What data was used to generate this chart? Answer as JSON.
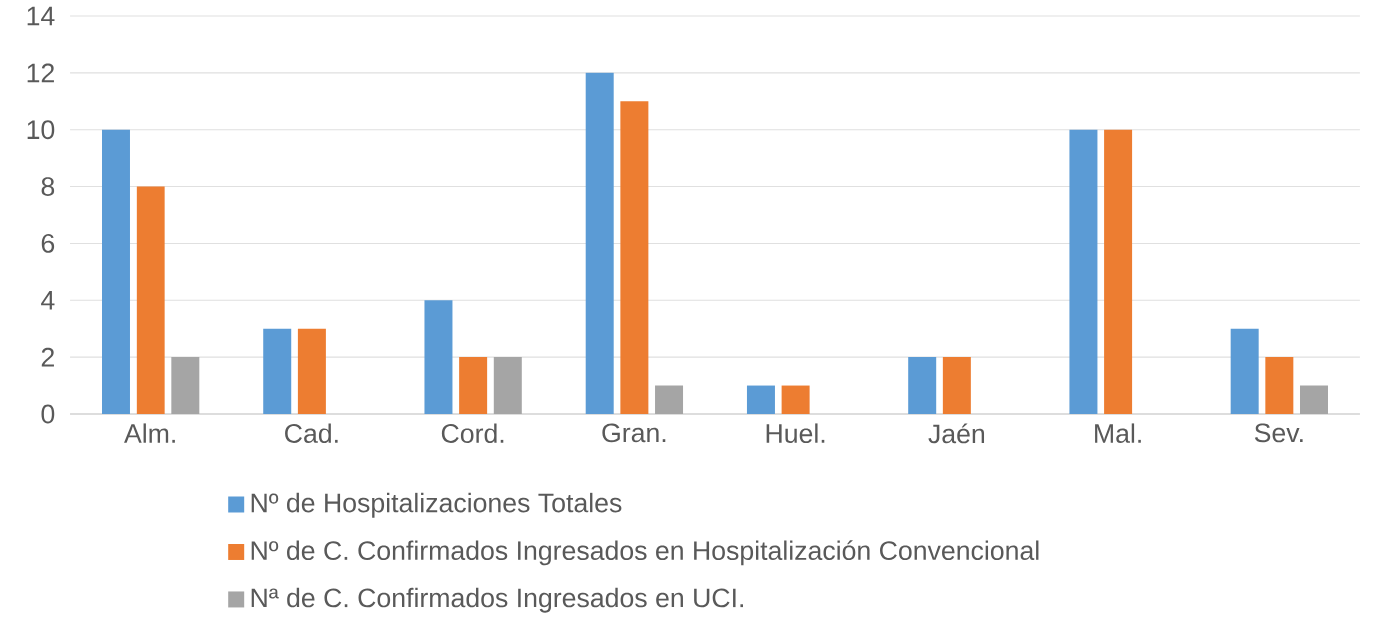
{
  "chart_data": {
    "type": "bar",
    "categories": [
      "Alm.",
      "Cad.",
      "Cord.",
      "Gran.",
      "Huel.",
      "Jaén",
      "Mal.",
      "Sev."
    ],
    "series": [
      {
        "name": "Nº de Hospitalizaciones Totales",
        "color": "#5b9bd5",
        "values": [
          10,
          3,
          4,
          12,
          1,
          2,
          10,
          3
        ]
      },
      {
        "name": "Nº de C. Confirmados Ingresados en Hospitalización Convencional",
        "color": "#ed7d31",
        "values": [
          8,
          3,
          2,
          11,
          1,
          2,
          10,
          2
        ]
      },
      {
        "name": "Nª de C. Confirmados Ingresados en UCI.",
        "color": "#a5a5a5",
        "values": [
          2,
          0,
          2,
          1,
          0,
          0,
          0,
          1
        ]
      }
    ],
    "ylim": [
      0,
      14
    ],
    "yticks": [
      0,
      2,
      4,
      6,
      8,
      10,
      12,
      14
    ],
    "grid": "y",
    "legend": "bottom"
  }
}
